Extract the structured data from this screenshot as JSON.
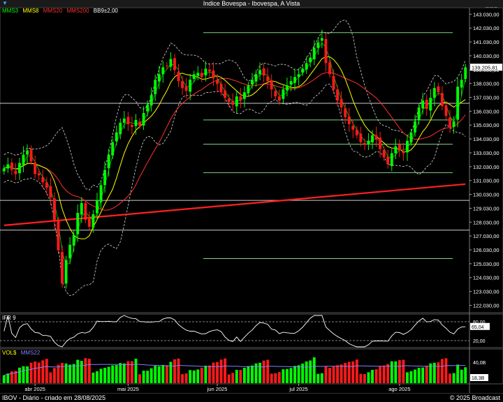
{
  "window": {
    "title": "Indice Bovespa - Ibovespa, A Vista",
    "icon": "app-menu-icon"
  },
  "legend": {
    "items": [
      {
        "label": "MMS3",
        "color": "#00ff00"
      },
      {
        "label": "MMS8",
        "color": "#ffff00"
      },
      {
        "label": "MMS20",
        "color": "#ff3030"
      },
      {
        "label": "MMS200",
        "color": "#ff3030"
      },
      {
        "label": "BB9±2,00",
        "color": "#ffffff"
      }
    ]
  },
  "rsi": {
    "label": "IFR 9",
    "current": "65,04",
    "levels": [
      "80,00",
      "20,00"
    ]
  },
  "volume": {
    "label": "VOL$",
    "avg_label": "MMS22",
    "axis_top": "40,0B",
    "current": "18,3B"
  },
  "footer": {
    "left": "IBOV - Diário - criado em 28/08/2025",
    "right": "© 2025 Broadcast"
  },
  "colors": {
    "up": "#00ff00",
    "down": "#ff1a1a",
    "bb": "#ffffff",
    "ma3": "#00ff00",
    "ma8": "#ffff00",
    "ma20": "#ff3030",
    "ma200": "#ff2020",
    "hline_white": "#ffffff",
    "hline_green": "#90ee90"
  },
  "chart_data": {
    "type": "candlestick",
    "title": "Indice Bovespa - Ibovespa, A Vista",
    "y_axis": {
      "min": 121500,
      "max": 143500,
      "ticks": [
        122030,
        123030,
        124030,
        125030,
        126030,
        127030,
        128030,
        129030,
        130030,
        131030,
        132030,
        133030,
        134030,
        135030,
        136030,
        137030,
        138030,
        139030,
        140030,
        141030,
        142030,
        143030
      ],
      "tick_labels": [
        "122.030,00",
        "123.030,00",
        "124.030,00",
        "125.030,00",
        "126.030,00",
        "127.030,00",
        "128.030,00",
        "129.030,00",
        "130.030,00",
        "131.030,00",
        "132.030,00",
        "133.030,00",
        "134.030,00",
        "135.030,00",
        "136.030,00",
        "137.030,00",
        "138.030,00",
        "139.030,00",
        "140.030,00",
        "141.030,00",
        "142.030,00",
        "143.030,00"
      ]
    },
    "last_price": 139205.81,
    "last_price_label": "139.205,81",
    "x_month_labels": [
      {
        "label": "abr 2025",
        "index": 8
      },
      {
        "label": "mai 2025",
        "index": 32
      },
      {
        "label": "jun 2025",
        "index": 55
      },
      {
        "label": "jul 2025",
        "index": 76
      },
      {
        "label": "ago 2025",
        "index": 102
      }
    ],
    "horizontal_lines": [
      {
        "value": 141700,
        "color": "green"
      },
      {
        "value": 136600,
        "color": "white"
      },
      {
        "value": 135400,
        "color": "green"
      },
      {
        "value": 133650,
        "color": "green"
      },
      {
        "value": 131600,
        "color": "green"
      },
      {
        "value": 129600,
        "color": "white"
      },
      {
        "value": 127450,
        "color": "white"
      },
      {
        "value": 125400,
        "color": "green"
      }
    ],
    "closes": [
      131900,
      132200,
      131800,
      131500,
      132300,
      132900,
      133200,
      132400,
      131500,
      131400,
      130900,
      130500,
      129800,
      128100,
      126000,
      123600,
      125300,
      126400,
      127100,
      128700,
      129400,
      128200,
      127700,
      128600,
      129600,
      130700,
      131800,
      132900,
      133800,
      134500,
      135200,
      135500,
      135100,
      134900,
      135400,
      135000,
      135900,
      136500,
      137200,
      138300,
      138700,
      139200,
      139300,
      139800,
      139000,
      138200,
      137700,
      137500,
      138300,
      138700,
      138800,
      138500,
      139100,
      138900,
      138400,
      138000,
      137400,
      137000,
      136700,
      136500,
      137100,
      136800,
      137400,
      137900,
      138300,
      138700,
      139000,
      138600,
      138200,
      137600,
      137100,
      136800,
      137600,
      137900,
      138200,
      138500,
      138700,
      139100,
      139500,
      139900,
      140600,
      141000,
      141300,
      139500,
      138700,
      137600,
      136800,
      136300,
      135600,
      135100,
      134700,
      134300,
      133800,
      133600,
      133900,
      134300,
      134000,
      133300,
      132700,
      132200,
      133000,
      133500,
      133200,
      133000,
      133900,
      134500,
      135300,
      136300,
      136800,
      136200,
      137000,
      137700,
      137400,
      136400,
      135700,
      134900,
      135300,
      137800,
      138300,
      139200
    ]
  }
}
